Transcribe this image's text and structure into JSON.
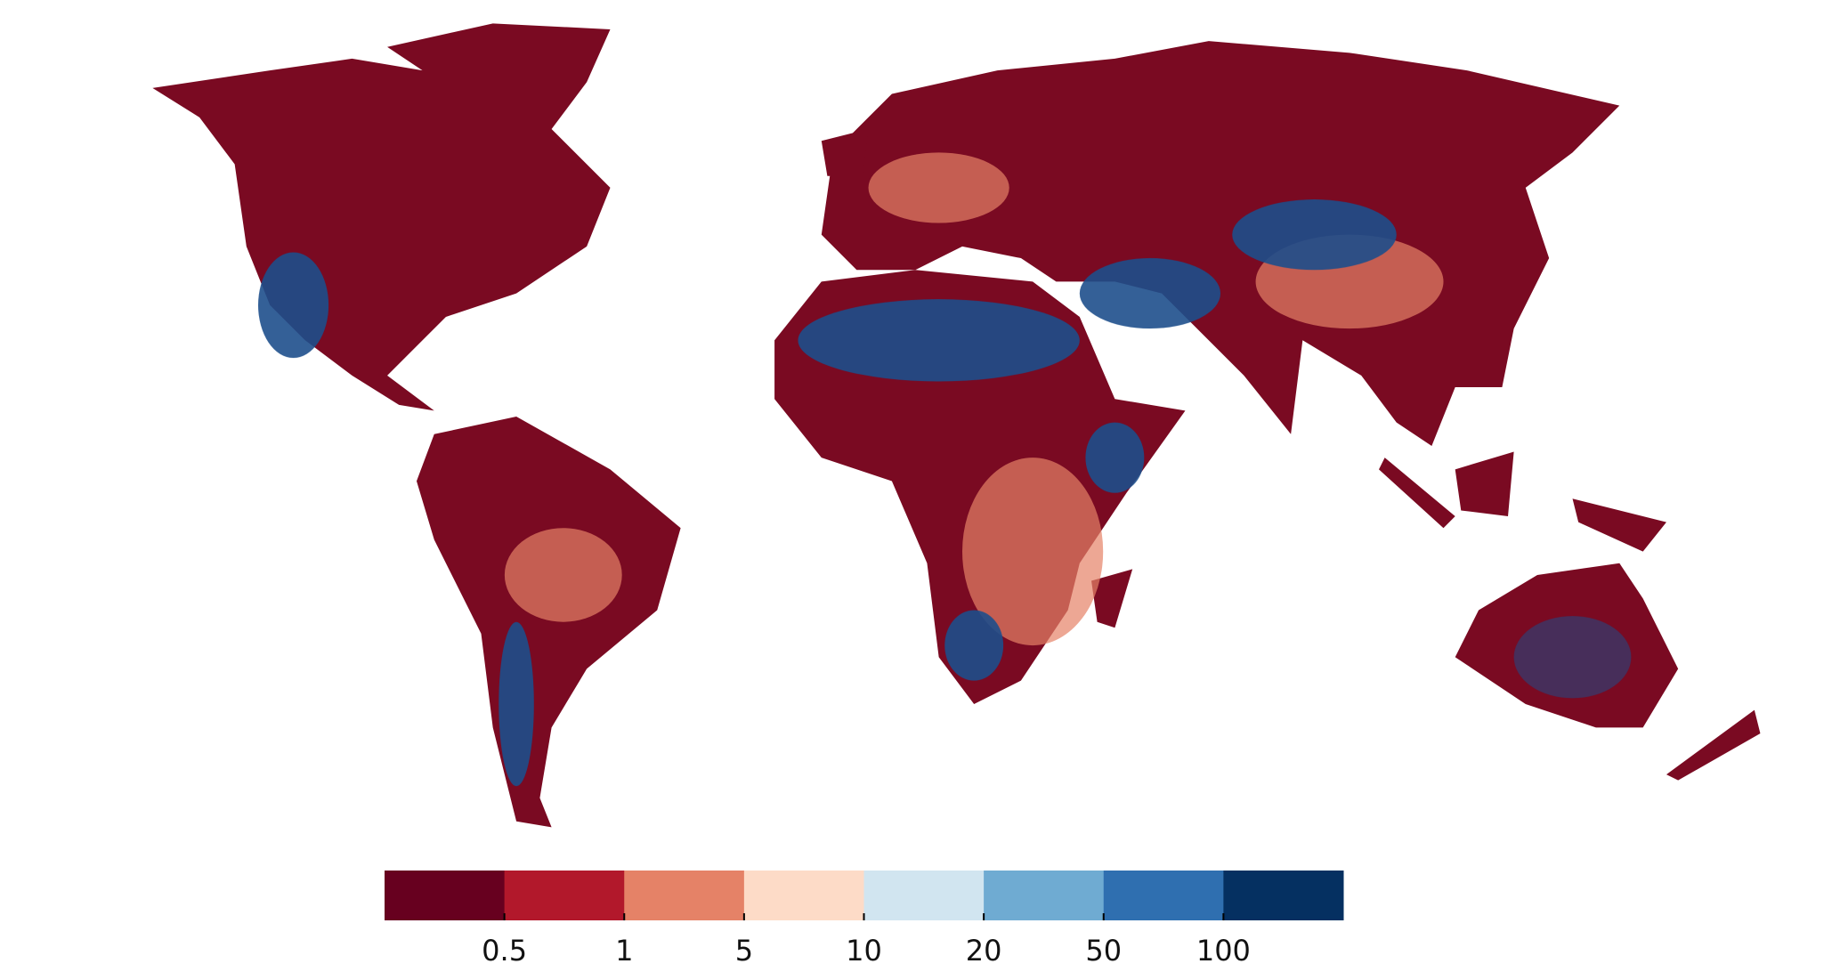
{
  "map": {
    "colorbar": {
      "colors": [
        "#67001f",
        "#b2182b",
        "#e58267",
        "#fddbc7",
        "#d1e5f0",
        "#6fabd2",
        "#2f6fb0",
        "#053061"
      ],
      "ticks": [
        0.5,
        1,
        5,
        10,
        20,
        50,
        100
      ]
    }
  }
}
